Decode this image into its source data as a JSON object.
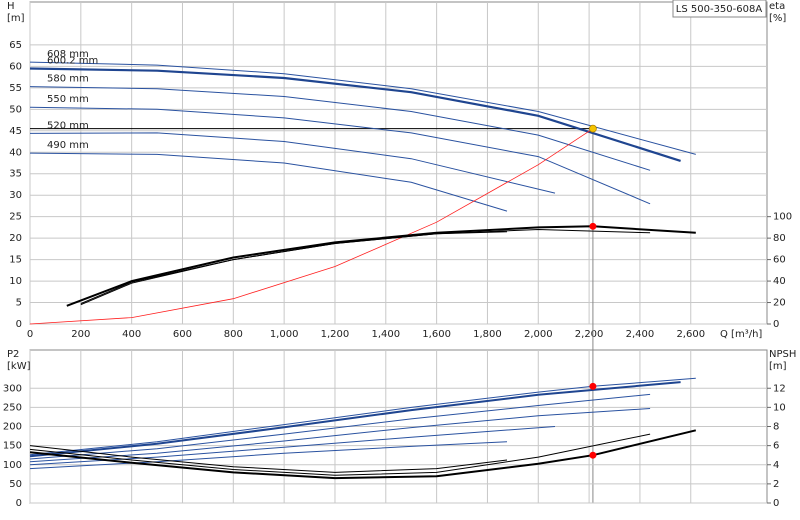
{
  "chart_data": [
    {
      "type": "line",
      "title": "LS 500-350-608A",
      "ylabel": [
        "H",
        "[m]"
      ],
      "y2label": [
        "eta",
        "[%]"
      ],
      "xlabel": "Q [m³/h]",
      "xlim": [
        0,
        2900
      ],
      "ylim": [
        0,
        75
      ],
      "y2lim": [
        0,
        300
      ],
      "xticks": [
        0,
        200,
        400,
        600,
        800,
        {
          "value": 1000,
          "label": "1,000"
        },
        {
          "value": 1200,
          "label": "1,200"
        },
        {
          "value": 1400,
          "label": "1,400"
        },
        {
          "value": 1600,
          "label": "1,600"
        },
        {
          "value": 1800,
          "label": "1,800"
        },
        {
          "value": 2000,
          "label": "2,000"
        },
        {
          "value": 2200,
          "label": "2,200"
        },
        {
          "value": 2400,
          "label": "2,400"
        },
        {
          "value": 2600,
          "label": "2,600"
        }
      ],
      "yticks": [
        0,
        5,
        10,
        15,
        20,
        25,
        30,
        35,
        40,
        45,
        50,
        55,
        60,
        65
      ],
      "y2ticks": [
        0,
        20,
        40,
        60,
        80,
        100
      ],
      "grid": true,
      "series": [
        {
          "name": "608 mm",
          "color": "#2a52a0",
          "width": 1,
          "axis": "y",
          "x": [
            0,
            500,
            1000,
            1500,
            2000,
            2620
          ],
          "values": [
            61,
            60.3,
            58.3,
            54.8,
            49.5,
            39.5
          ]
        },
        {
          "name": "600.2 mm",
          "color": "#1f4590",
          "width": 2.2,
          "axis": "y",
          "x": [
            0,
            500,
            1000,
            1500,
            2000,
            2560
          ],
          "values": [
            59.5,
            59,
            57.3,
            54,
            48.5,
            38
          ]
        },
        {
          "name": "580 mm",
          "color": "#2a52a0",
          "width": 1,
          "axis": "y",
          "x": [
            0,
            500,
            1000,
            1500,
            2000,
            2440
          ],
          "values": [
            55.3,
            54.8,
            53,
            49.5,
            44,
            35.8
          ]
        },
        {
          "name": "550 mm",
          "color": "#2a52a0",
          "width": 1,
          "axis": "y",
          "x": [
            0,
            500,
            1000,
            1500,
            2000,
            2440
          ],
          "values": [
            50.5,
            50,
            48,
            44.5,
            39,
            28
          ]
        },
        {
          "name": "520 mm",
          "color": "#2a52a0",
          "width": 1,
          "axis": "y",
          "x": [
            0,
            500,
            1000,
            1500,
            2066
          ],
          "values": [
            44.4,
            44.5,
            42.5,
            38.5,
            30.5
          ]
        },
        {
          "name": "490 mm",
          "color": "#2a52a0",
          "width": 1,
          "axis": "y",
          "x": [
            0,
            500,
            1000,
            1500,
            1877
          ],
          "values": [
            39.8,
            39.5,
            37.5,
            33,
            26.3
          ]
        },
        {
          "color": "#ff2020",
          "width": 0.8,
          "axis": "y",
          "x": [
            0,
            400,
            800,
            1200,
            1600,
            2000,
            2215
          ],
          "values": [
            0,
            1.5,
            5.9,
            13.4,
            23.7,
            37.1,
            45.5
          ]
        },
        {
          "color": "#000000",
          "width": 2,
          "axis": "y2",
          "x": [
            145,
            400,
            800,
            1200,
            1600,
            2000,
            2215,
            2620
          ],
          "values": [
            17,
            40,
            62,
            76,
            85,
            90,
            91,
            85
          ]
        },
        {
          "color": "#000000",
          "width": 1,
          "axis": "y2",
          "x": [
            200,
            400,
            800,
            1200,
            1600,
            2000,
            2440
          ],
          "values": [
            18,
            38,
            60,
            75,
            84,
            88,
            85
          ]
        },
        {
          "color": "#000000",
          "width": 1,
          "axis": "y2",
          "x": [
            200,
            400,
            800,
            1200,
            1600,
            1877
          ],
          "values": [
            19,
            39,
            60,
            75,
            84,
            86
          ]
        }
      ],
      "points": [
        {
          "x": 2215,
          "value": 45.5,
          "axis": "y",
          "color": "#f5c400"
        },
        {
          "x": 2215,
          "value": 91,
          "axis": "y2",
          "color": "#ff0000"
        }
      ]
    },
    {
      "type": "line",
      "ylabel": [
        "P2",
        "[kW]"
      ],
      "y2label": [
        "NPSH",
        "[m]"
      ],
      "xlim": [
        0,
        2900
      ],
      "ylim": [
        0,
        400
      ],
      "y2lim": [
        0,
        16
      ],
      "xticks": [
        0,
        200,
        400,
        600,
        800,
        1000,
        1200,
        1400,
        1600,
        1800,
        2000,
        2200,
        2400,
        2600
      ],
      "yticks": [
        0,
        50,
        100,
        150,
        200,
        250,
        300
      ],
      "y2ticks": [
        0,
        2,
        4,
        6,
        8,
        10,
        12
      ],
      "grid": true,
      "series": [
        {
          "color": "#2a52a0",
          "width": 1,
          "axis": "y",
          "x": [
            0,
            500,
            1000,
            1500,
            2000,
            2215,
            2620
          ],
          "values": [
            126,
            160,
            205,
            250,
            290,
            305,
            326
          ]
        },
        {
          "color": "#1f4590",
          "width": 2,
          "axis": "y",
          "x": [
            0,
            500,
            1000,
            1500,
            2000,
            2560
          ],
          "values": [
            122,
            155,
            198,
            243,
            283,
            316
          ]
        },
        {
          "color": "#2a52a0",
          "width": 1,
          "axis": "y",
          "x": [
            0,
            500,
            1000,
            1500,
            2000,
            2440
          ],
          "values": [
            115,
            142,
            180,
            220,
            255,
            284
          ]
        },
        {
          "color": "#2a52a0",
          "width": 1,
          "axis": "y",
          "x": [
            0,
            500,
            1000,
            1500,
            2000,
            2440
          ],
          "values": [
            108,
            130,
            162,
            197,
            228,
            247
          ]
        },
        {
          "color": "#2a52a0",
          "width": 1,
          "axis": "y",
          "x": [
            0,
            500,
            1000,
            1500,
            2066
          ],
          "values": [
            100,
            120,
            146,
            172,
            200
          ]
        },
        {
          "color": "#2a52a0",
          "width": 1,
          "axis": "y",
          "x": [
            0,
            500,
            1000,
            1500,
            1877
          ],
          "values": [
            90,
            108,
            130,
            148,
            160
          ]
        },
        {
          "color": "#000000",
          "width": 2,
          "axis": "y2",
          "x": [
            0,
            400,
            800,
            1200,
            1600,
            2000,
            2215,
            2620
          ],
          "values": [
            5.3,
            4.2,
            3.2,
            2.6,
            2.8,
            4.1,
            5.0,
            7.6
          ]
        },
        {
          "color": "#000000",
          "width": 1,
          "axis": "y2",
          "x": [
            0,
            400,
            800,
            1200,
            1600,
            2000,
            2440
          ],
          "values": [
            5.6,
            4.5,
            3.5,
            2.9,
            3.2,
            4.8,
            7.2
          ]
        },
        {
          "color": "#000000",
          "width": 1,
          "axis": "y2",
          "x": [
            0,
            400,
            800,
            1200,
            1600,
            1877
          ],
          "values": [
            6.0,
            4.8,
            3.8,
            3.2,
            3.6,
            4.5
          ]
        }
      ],
      "points": [
        {
          "x": 2215,
          "value": 305,
          "axis": "y",
          "color": "#ff0000"
        },
        {
          "x": 2215,
          "value": 5.0,
          "axis": "y2",
          "color": "#ff0000"
        }
      ]
    }
  ]
}
